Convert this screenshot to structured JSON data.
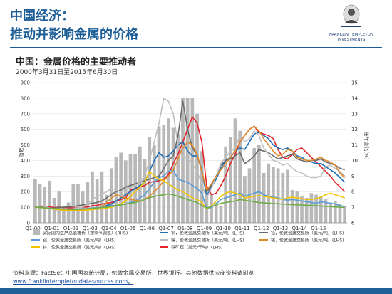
{
  "header": {
    "title_line1": "中国经济：",
    "title_line2": "推动并影响金属的价格",
    "logo_line1": "FRANKLIN TEMPLETON",
    "logo_line2": "INVESTMENTS"
  },
  "chart_title": "中国：金属价格的主要推动者",
  "chart_subtitle": "2000年3月31日至2015年6月30日",
  "footer_source": "资料来源：FactSet, 中国国家统计局，伦敦金属交易所，世界银行。其他数据供应商资料请浏览",
  "footer_link": "www.franklintempletondatasources.com",
  "footer_link_suffix": "。",
  "colors": {
    "brand": "#1f5f98",
    "bars": "#b8b8b8",
    "copper": "#1f6fb5",
    "aluminum": "#5b9bd5",
    "nickel": "#bfbfbf",
    "lead": "#6b6b6b",
    "zinc": "#70ad47",
    "tin": "#e08a2e",
    "ironore": "#e3242b",
    "yellow": "#f2c500"
  },
  "chart_data": {
    "type": "line",
    "ylabel_left": "指数",
    "ylabel_right": "按年变化(%)",
    "ylim_left": [
      0,
      900
    ],
    "ylim_right": [
      6,
      15
    ],
    "yticks_left": [
      "0",
      "100",
      "200",
      "300",
      "400",
      "500",
      "600",
      "700",
      "800",
      "900"
    ],
    "yticks_right": [
      "6",
      "7",
      "8",
      "9",
      "10",
      "11",
      "12",
      "13",
      "14",
      "15"
    ],
    "x_ticks": [
      "Q1-00",
      "Q1-01",
      "Q1-02",
      "Q1-03",
      "Q1-04",
      "Q1-05",
      "Q1-06",
      "Q1-07",
      "Q1-08",
      "Q1-09",
      "Q1-10",
      "Q1-11",
      "Q1-12",
      "Q1-13",
      "Q1-14",
      "Q1-15"
    ],
    "grid": true,
    "legend_position": "bottom",
    "legend": [
      {
        "label": "实际国内生产总值增长（按季节调整）(RHS)",
        "color_key": "bars",
        "kind": "bar"
      },
      {
        "label": "铜，伦敦金属交易所（美元/吨）(LHS)",
        "color_key": "copper",
        "kind": "line"
      },
      {
        "label": "铅，伦敦金属交易所（美元/吨）(LHS)",
        "color_key": "lead",
        "kind": "line"
      },
      {
        "label": "铝，伦敦金属交易所（美元/吨）(LHS)",
        "color_key": "aluminum",
        "kind": "line"
      },
      {
        "label": "镍，伦敦金属交易所（美元/吨）(LHS)",
        "color_key": "nickel",
        "kind": "line"
      },
      {
        "label": "锡，伦敦金属交易所（美元/吨）(LHS)",
        "color_key": "tin",
        "kind": "line"
      },
      {
        "label": "锌，伦敦金属交易所（美元/吨）(LHS)",
        "color_key": "yellow",
        "kind": "line"
      },
      {
        "label": "铁矿石（美元/干吨）(LHS)",
        "color_key": "ironore",
        "kind": "line"
      }
    ],
    "gdp_bars": [
      8.8,
      8.5,
      8.3,
      8.7,
      7.6,
      8.0,
      7.1,
      7.3,
      8.5,
      8.5,
      8.0,
      8.6,
      9.3,
      8.8,
      9.3,
      7.8,
      9.5,
      10.2,
      10.5,
      10.0,
      10.4,
      10.4,
      10.9,
      10.1,
      11.5,
      11.0,
      12.2,
      12.3,
      12.7,
      12.1,
      11.7,
      14.0,
      14.0,
      14.0,
      13.0,
      10.6,
      8.0,
      7.8,
      7.3,
      7.1,
      10.9,
      11.5,
      12.7,
      11.9,
      9.0,
      9.5,
      10.8,
      11.0,
      9.2,
      9.8,
      9.6,
      9.5,
      9.2,
      9.4,
      8.1,
      8.0,
      7.7,
      7.6,
      7.9,
      7.8,
      7.7,
      7.5,
      7.3,
      7.4,
      7.2,
      7.1
    ],
    "series": [
      {
        "name": "铁矿石（美元/干吨）(LHS)",
        "color_key": "ironore",
        "values": [
          100,
          102,
          104,
          103,
          98,
          100,
          98,
          97,
          95,
          96,
          100,
          102,
          110,
          112,
          120,
          125,
          130,
          140,
          150,
          160,
          210,
          220,
          230,
          240,
          260,
          265,
          270,
          280,
          310,
          380,
          440,
          520,
          600,
          680,
          640,
          520,
          240,
          180,
          190,
          240,
          300,
          380,
          440,
          520,
          560,
          600,
          620,
          580,
          570,
          560,
          540,
          470,
          420,
          410,
          440,
          470,
          480,
          450,
          420,
          390,
          360,
          330,
          300,
          260,
          230,
          200
        ]
      },
      {
        "name": "铜，伦敦金属交易所（美元/吨）(LHS)",
        "color_key": "copper",
        "values": [
          100,
          98,
          95,
          92,
          88,
          85,
          82,
          80,
          78,
          80,
          85,
          88,
          92,
          95,
          100,
          110,
          120,
          140,
          160,
          180,
          200,
          220,
          240,
          260,
          330,
          400,
          450,
          420,
          430,
          460,
          500,
          520,
          460,
          430,
          430,
          340,
          170,
          230,
          280,
          350,
          400,
          420,
          460,
          480,
          470,
          520,
          570,
          580,
          560,
          540,
          500,
          480,
          470,
          480,
          460,
          430,
          420,
          400,
          390,
          380,
          380,
          360,
          340,
          320,
          290,
          260
        ]
      },
      {
        "name": "铝，伦敦金属交易所（美元/吨）(LHS)",
        "color_key": "aluminum",
        "values": [
          100,
          100,
          98,
          95,
          92,
          90,
          88,
          85,
          85,
          88,
          90,
          92,
          95,
          98,
          100,
          105,
          110,
          112,
          115,
          120,
          130,
          140,
          160,
          180,
          220,
          260,
          290,
          300,
          330,
          340,
          280,
          270,
          260,
          240,
          220,
          190,
          90,
          100,
          120,
          150,
          160,
          170,
          180,
          190,
          170,
          180,
          190,
          200,
          180,
          170,
          165,
          160,
          150,
          145,
          150,
          145,
          140,
          135,
          130,
          125,
          135,
          130,
          125,
          120,
          110,
          105
        ]
      },
      {
        "name": "铅，伦敦金属交易所（美元/吨）(LHS)",
        "color_key": "lead",
        "values": [
          100,
          100,
          95,
          92,
          95,
          98,
          100,
          102,
          105,
          110,
          115,
          120,
          125,
          130,
          140,
          160,
          180,
          200,
          210,
          230,
          240,
          250,
          260,
          270,
          280,
          290,
          300,
          350,
          400,
          430,
          560,
          780,
          600,
          480,
          440,
          330,
          200,
          240,
          300,
          370,
          400,
          410,
          430,
          450,
          380,
          400,
          430,
          470,
          460,
          450,
          430,
          410,
          420,
          430,
          440,
          410,
          400,
          390,
          400,
          400,
          410,
          390,
          380,
          370,
          350,
          340
        ]
      },
      {
        "name": "镍，伦敦金属交易所（美元/吨）(LHS)",
        "color_key": "nickel",
        "values": [
          100,
          110,
          105,
          95,
          85,
          80,
          82,
          85,
          90,
          95,
          100,
          120,
          150,
          170,
          180,
          200,
          220,
          210,
          200,
          220,
          230,
          240,
          260,
          300,
          400,
          520,
          640,
          800,
          780,
          700,
          500,
          430,
          410,
          380,
          330,
          250,
          160,
          220,
          300,
          380,
          420,
          460,
          480,
          560,
          520,
          540,
          590,
          560,
          480,
          440,
          400,
          390,
          370,
          380,
          350,
          330,
          320,
          300,
          290,
          290,
          300,
          360,
          370,
          350,
          330,
          300
        ]
      },
      {
        "name": "锡，伦敦金属交易所（美元/吨）(LHS)",
        "color_key": "tin",
        "values": [
          100,
          98,
          96,
          92,
          88,
          85,
          82,
          80,
          80,
          82,
          85,
          88,
          90,
          95,
          100,
          130,
          160,
          180,
          170,
          160,
          150,
          145,
          140,
          150,
          170,
          200,
          230,
          270,
          300,
          340,
          410,
          480,
          520,
          500,
          440,
          330,
          210,
          250,
          300,
          340,
          380,
          420,
          460,
          520,
          560,
          600,
          620,
          590,
          540,
          500,
          460,
          430,
          440,
          470,
          460,
          420,
          410,
          400,
          400,
          410,
          420,
          400,
          390,
          370,
          320,
          290
        ]
      },
      {
        "name": "锌，伦敦金属交易所（美元/吨）(LHS)",
        "color_key": "yellow",
        "values": [
          100,
          98,
          95,
          92,
          88,
          85,
          82,
          80,
          78,
          78,
          80,
          82,
          85,
          88,
          90,
          95,
          100,
          110,
          120,
          140,
          170,
          200,
          230,
          260,
          330,
          300,
          280,
          270,
          250,
          230,
          210,
          200,
          180,
          160,
          150,
          130,
          90,
          110,
          140,
          170,
          190,
          200,
          190,
          180,
          160,
          165,
          170,
          175,
          170,
          165,
          160,
          155,
          150,
          160,
          165,
          160,
          155,
          150,
          150,
          155,
          165,
          180,
          190,
          180,
          170,
          160
        ]
      },
      {
        "name": "锌，伦敦金属交易所（美元/吨）(LHS)",
        "color_key": "zinc",
        "values": [
          100,
          98,
          96,
          94,
          92,
          90,
          88,
          86,
          85,
          86,
          88,
          90,
          92,
          95,
          98,
          100,
          105,
          110,
          115,
          120,
          125,
          130,
          140,
          150,
          160,
          170,
          175,
          180,
          185,
          180,
          170,
          160,
          150,
          140,
          130,
          110,
          95,
          105,
          115,
          125,
          130,
          135,
          140,
          150,
          145,
          140,
          135,
          130,
          128,
          126,
          124,
          122,
          120,
          118,
          116,
          115,
          114,
          113,
          112,
          110,
          108,
          106,
          104,
          102,
          100,
          98
        ]
      }
    ]
  }
}
